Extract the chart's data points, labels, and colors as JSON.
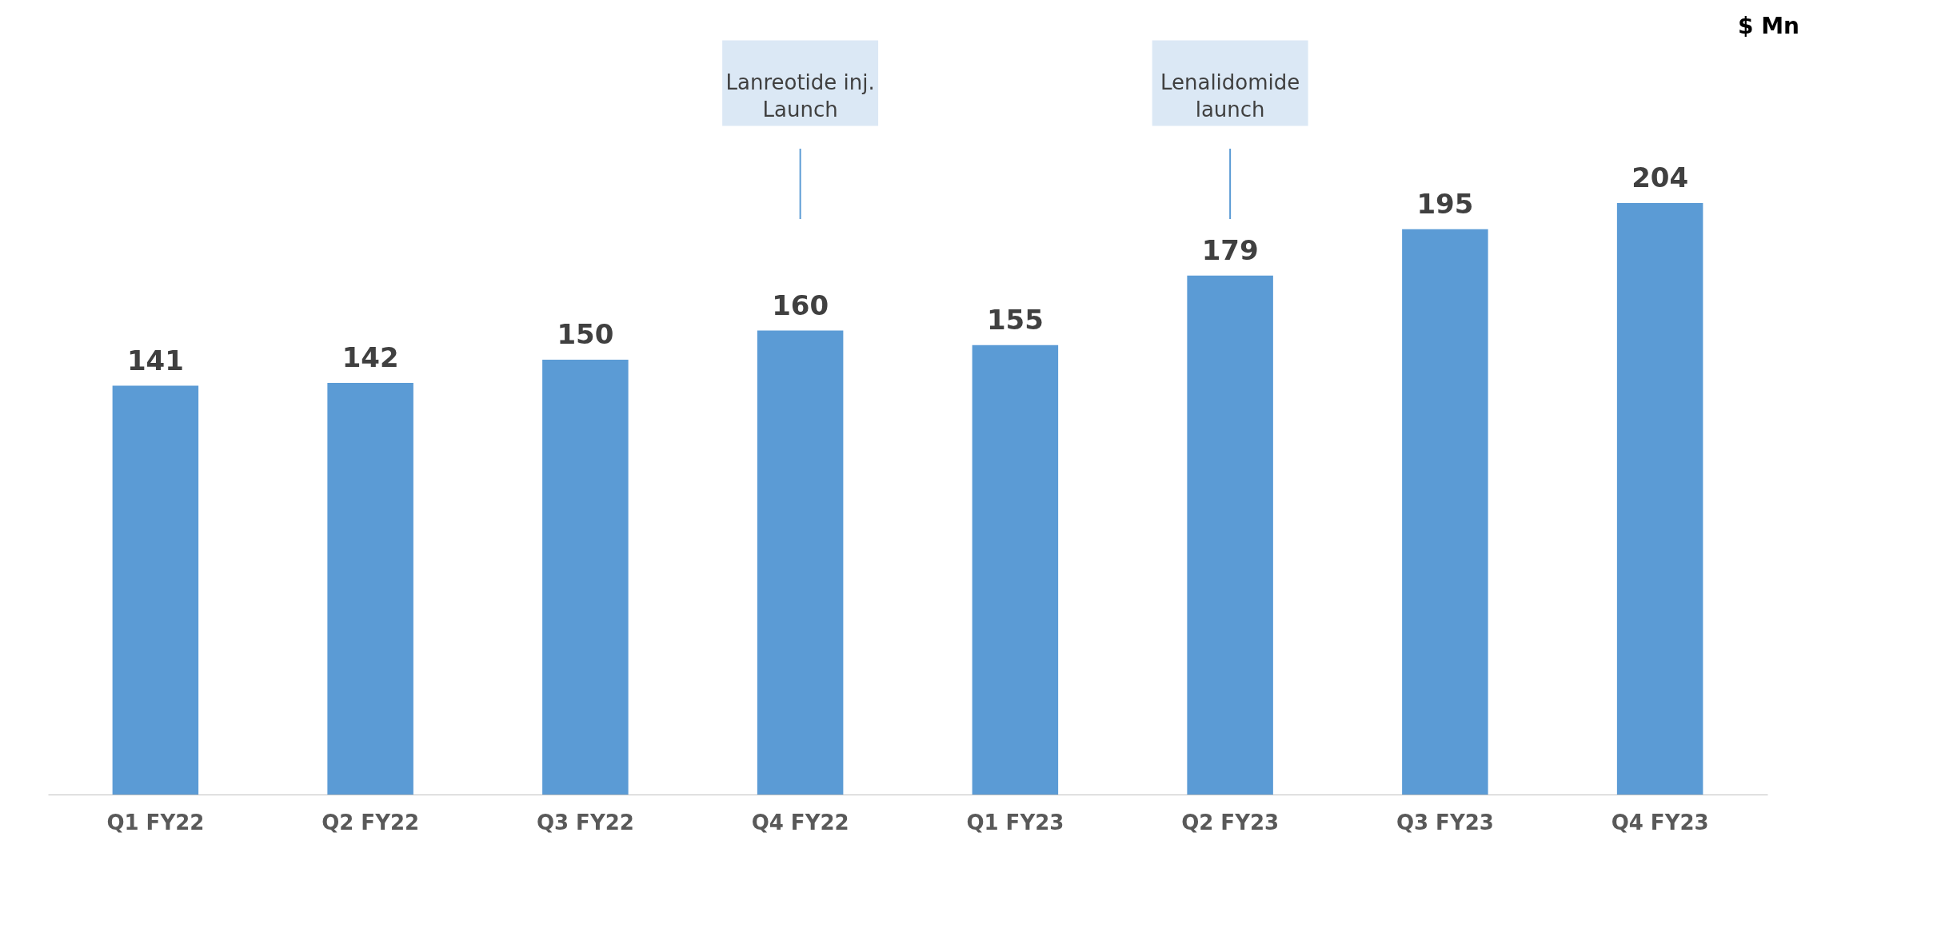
{
  "chart_data": {
    "type": "bar",
    "categories": [
      "Q1 FY22",
      "Q2 FY22",
      "Q3 FY22",
      "Q4 FY22",
      "Q1 FY23",
      "Q2 FY23",
      "Q3 FY23",
      "Q4 FY23"
    ],
    "values": [
      141,
      142,
      150,
      160,
      155,
      179,
      195,
      204
    ],
    "color": "#5b9bd5",
    "data_labels": true,
    "grid": false,
    "ref_lines": [
      {
        "axis": "x",
        "value": "Q4 FY22",
        "label": "Lanreotide inj. Launch",
        "color": "#5b9bd5"
      },
      {
        "axis": "x",
        "value": "Q2 FY23",
        "label": "Lenalidomide launch",
        "color": "#5b9bd5"
      }
    ],
    "annotations": [
      "$ Mn"
    ]
  }
}
